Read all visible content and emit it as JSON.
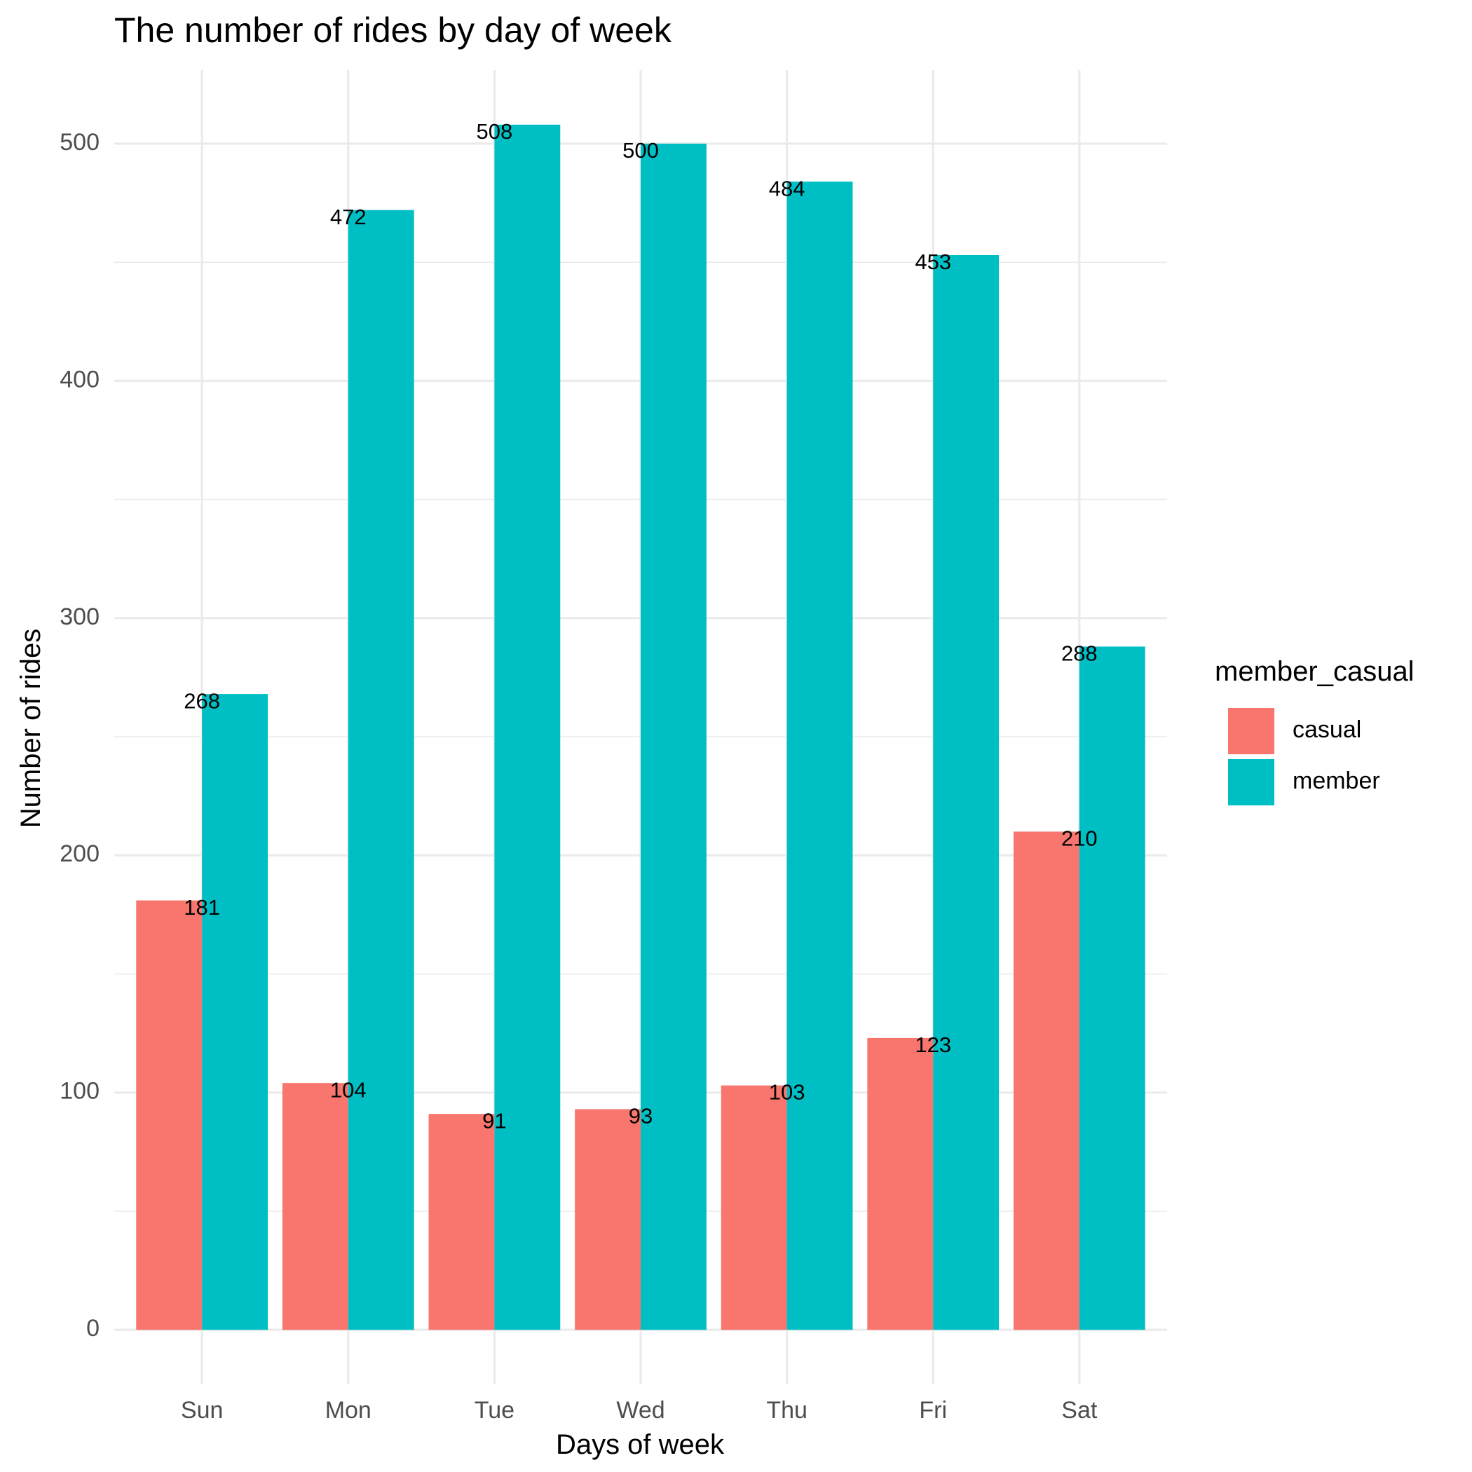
{
  "chart_data": {
    "type": "bar",
    "title": "The number of rides by day of week",
    "xlabel": "Days of week",
    "ylabel": "Number of rides",
    "categories": [
      "Sun",
      "Mon",
      "Tue",
      "Wed",
      "Thu",
      "Fri",
      "Sat"
    ],
    "series": [
      {
        "name": "casual",
        "color": "#F8766D",
        "values": [
          181,
          104,
          91,
          93,
          103,
          123,
          210
        ]
      },
      {
        "name": "member",
        "color": "#00BFC4",
        "values": [
          268,
          472,
          508,
          500,
          484,
          453,
          288
        ]
      }
    ],
    "ylim": [
      -23,
      531
    ],
    "yticks": [
      0,
      100,
      200,
      300,
      400,
      500
    ],
    "grid": true,
    "legend": {
      "title": "member_casual",
      "position": "right"
    }
  }
}
